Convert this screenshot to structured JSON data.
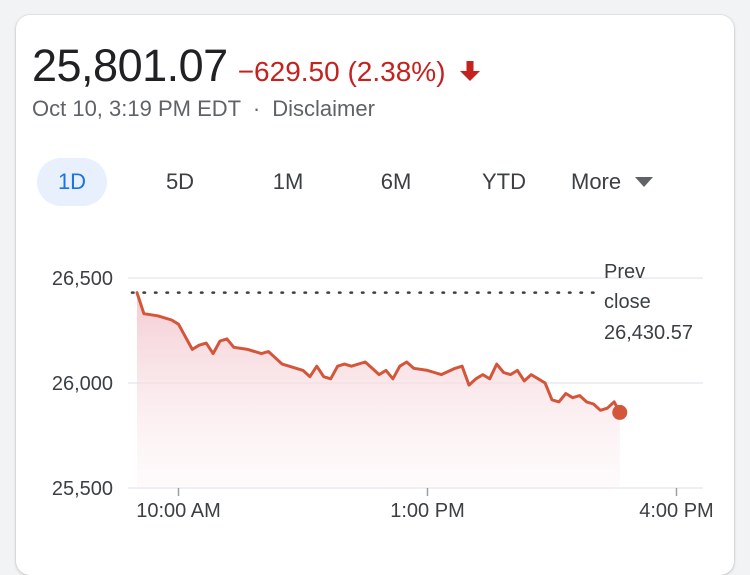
{
  "quote": {
    "price": "25,801.07",
    "change": "−629.50 (2.38%)",
    "direction": "down",
    "timestamp": "Oct 10, 3:19 PM EDT",
    "separator": "·",
    "disclaimer": "Disclaimer"
  },
  "tabs": [
    {
      "label": "1D",
      "active": true
    },
    {
      "label": "5D",
      "active": false
    },
    {
      "label": "1M",
      "active": false
    },
    {
      "label": "6M",
      "active": false
    },
    {
      "label": "YTD",
      "active": false
    }
  ],
  "more": {
    "label": "More",
    "icon": "caret-down-icon"
  },
  "colors": {
    "accent": "#1a73e8",
    "negative": "#c5221f",
    "line": "#d4563a",
    "fill_top": "#f3c9d0",
    "grid": "#e8eaed",
    "text": "#202124",
    "muted": "#5f6368"
  },
  "chart_data": {
    "type": "area",
    "title": "",
    "xlabel": "",
    "ylabel": "",
    "ylim": [
      25500,
      26500
    ],
    "y_ticks": [
      {
        "value": 26500,
        "label": "26,500"
      },
      {
        "value": 26000,
        "label": "26,000"
      },
      {
        "value": 25500,
        "label": "25,500"
      }
    ],
    "x_ticks": [
      {
        "time": "10:00",
        "label": "10:00 AM"
      },
      {
        "time": "13:00",
        "label": "1:00 PM"
      },
      {
        "time": "16:00",
        "label": "4:00 PM"
      }
    ],
    "x_range": [
      "09:30",
      "17:30"
    ],
    "grid": true,
    "prev_close": {
      "value": 26430.57,
      "label_line1": "Prev",
      "label_line2": "close",
      "value_label": "26,430.57"
    },
    "series": [
      {
        "points": [
          [
            "09:30",
            26430
          ],
          [
            "09:35",
            26330
          ],
          [
            "09:45",
            26320
          ],
          [
            "09:55",
            26300
          ],
          [
            "10:00",
            26280
          ],
          [
            "10:10",
            26160
          ],
          [
            "10:15",
            26180
          ],
          [
            "10:20",
            26190
          ],
          [
            "10:25",
            26140
          ],
          [
            "10:30",
            26200
          ],
          [
            "10:35",
            26210
          ],
          [
            "10:40",
            26170
          ],
          [
            "10:50",
            26160
          ],
          [
            "11:00",
            26140
          ],
          [
            "11:05",
            26150
          ],
          [
            "11:10",
            26120
          ],
          [
            "11:15",
            26090
          ],
          [
            "11:25",
            26070
          ],
          [
            "11:30",
            26060
          ],
          [
            "11:35",
            26030
          ],
          [
            "11:40",
            26080
          ],
          [
            "11:45",
            26030
          ],
          [
            "11:50",
            26020
          ],
          [
            "11:55",
            26080
          ],
          [
            "12:00",
            26090
          ],
          [
            "12:05",
            26080
          ],
          [
            "12:15",
            26100
          ],
          [
            "12:20",
            26070
          ],
          [
            "12:25",
            26040
          ],
          [
            "12:30",
            26060
          ],
          [
            "12:35",
            26020
          ],
          [
            "12:40",
            26080
          ],
          [
            "12:45",
            26100
          ],
          [
            "12:50",
            26070
          ],
          [
            "13:00",
            26060
          ],
          [
            "13:05",
            26050
          ],
          [
            "13:10",
            26040
          ],
          [
            "13:20",
            26070
          ],
          [
            "13:25",
            26080
          ],
          [
            "13:30",
            25990
          ],
          [
            "13:35",
            26020
          ],
          [
            "13:40",
            26040
          ],
          [
            "13:45",
            26020
          ],
          [
            "13:50",
            26090
          ],
          [
            "13:55",
            26050
          ],
          [
            "14:00",
            26040
          ],
          [
            "14:05",
            26060
          ],
          [
            "14:10",
            26010
          ],
          [
            "14:15",
            26040
          ],
          [
            "14:20",
            26020
          ],
          [
            "14:25",
            26000
          ],
          [
            "14:30",
            25920
          ],
          [
            "14:35",
            25910
          ],
          [
            "14:40",
            25950
          ],
          [
            "14:45",
            25930
          ],
          [
            "14:50",
            25940
          ],
          [
            "14:55",
            25910
          ],
          [
            "15:00",
            25900
          ],
          [
            "15:05",
            25870
          ],
          [
            "15:10",
            25880
          ],
          [
            "15:15",
            25910
          ],
          [
            "15:19",
            25860
          ]
        ]
      }
    ]
  }
}
